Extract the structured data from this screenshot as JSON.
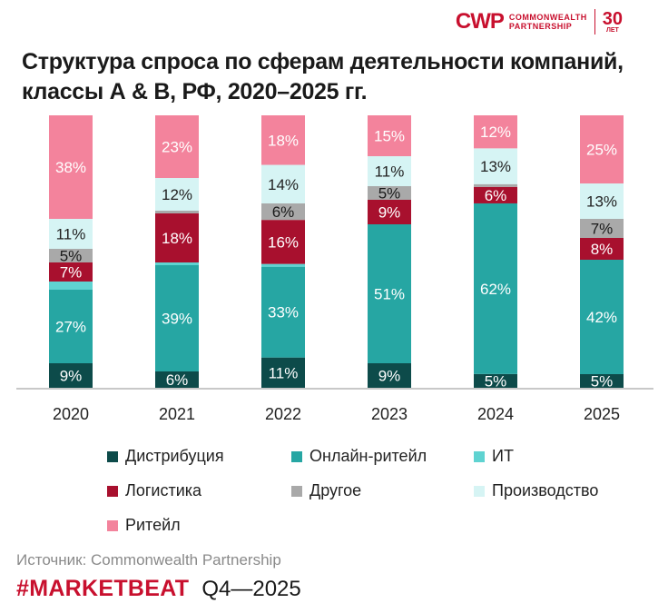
{
  "logo": {
    "mark": "CWP",
    "line1": "COMMONWEALTH",
    "line2": "PARTNERSHIP",
    "years": "30",
    "years_label": "ЛЕТ"
  },
  "colors": {
    "distribution": "#0d4b4a",
    "online_retail": "#26a6a3",
    "it": "#5fd3d1",
    "logistics": "#a8102e",
    "other": "#a9a9a9",
    "production": "#d6f4f4",
    "retail": "#f3839c",
    "brand": "#c8102e"
  },
  "chart_data": {
    "type": "bar",
    "stacked": true,
    "normalized": true,
    "title": "Структура спроса по сферам деятельности компаний, классы А & B, РФ, 2020–2025 гг.",
    "categories": [
      "2020",
      "2021",
      "2022",
      "2023",
      "2024",
      "2025"
    ],
    "series": [
      {
        "key": "distribution",
        "name": "Дистрибуция",
        "values": [
          9,
          6,
          11,
          9,
          5,
          5
        ],
        "labels": [
          "9%",
          "6%",
          "11%",
          "9%",
          "5%",
          "5%"
        ]
      },
      {
        "key": "online_retail",
        "name": "Онлайн-ритейл",
        "values": [
          27,
          39,
          33,
          51,
          62,
          42
        ],
        "labels": [
          "27%",
          "39%",
          "33%",
          "51%",
          "62%",
          "42%"
        ]
      },
      {
        "key": "it",
        "name": "ИТ",
        "values": [
          3,
          1,
          1,
          0,
          0,
          0
        ],
        "labels": [
          "",
          "",
          "",
          "",
          "",
          ""
        ]
      },
      {
        "key": "logistics",
        "name": "Логистика",
        "values": [
          7,
          18,
          16,
          9,
          6,
          8
        ],
        "labels": [
          "7%",
          "18%",
          "16%",
          "9%",
          "6%",
          "8%"
        ]
      },
      {
        "key": "other",
        "name": "Другое",
        "values": [
          5,
          1,
          6,
          5,
          1,
          7
        ],
        "labels": [
          "5%",
          "",
          "6%",
          "5%",
          "",
          "7%"
        ]
      },
      {
        "key": "production",
        "name": "Производство",
        "values": [
          11,
          12,
          14,
          11,
          13,
          13
        ],
        "labels": [
          "11%",
          "12%",
          "14%",
          "11%",
          "13%",
          "13%"
        ]
      },
      {
        "key": "retail",
        "name": "Ритейл",
        "values": [
          38,
          23,
          18,
          15,
          12,
          25
        ],
        "labels": [
          "38%",
          "23%",
          "18%",
          "15%",
          "12%",
          "25%"
        ]
      }
    ],
    "legend_position": "bottom",
    "grid": false
  },
  "source": "Источник: Commonwealth Partnership",
  "footer": {
    "brand": "#MARKETBEAT",
    "period": "Q4—2025"
  }
}
